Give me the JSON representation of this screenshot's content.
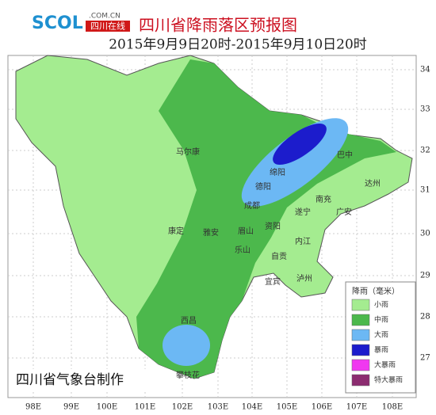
{
  "header": {
    "logo": "SCOL",
    "logo_domain": ".COM.CN",
    "logo_name": "四川在线",
    "title": "四川省降雨落区预报图",
    "subtitle": "2015年9月9日20时-2015年9月10日20时"
  },
  "axes": {
    "longitude_labels": [
      "98E",
      "99E",
      "100E",
      "101E",
      "102E",
      "103E",
      "104E",
      "105E",
      "106E",
      "107E",
      "108E"
    ],
    "latitude_labels": [
      "34",
      "33",
      "32",
      "31",
      "30",
      "29",
      "28",
      "27"
    ]
  },
  "cities": [
    "马尔康",
    "绵阳",
    "德阳",
    "成都",
    "巴中",
    "达州",
    "南充",
    "遂宁",
    "广安",
    "康定",
    "雅安",
    "眉山",
    "资阳",
    "乐山",
    "内江",
    "自贡",
    "泸州",
    "宜宾",
    "西昌",
    "攀枝花"
  ],
  "legend": {
    "title": "降雨（毫米）",
    "items": [
      {
        "label": "小雨",
        "color": "#a4ec90"
      },
      {
        "label": "中雨",
        "color": "#4cb84c"
      },
      {
        "label": "大雨",
        "color": "#6cb8f4"
      },
      {
        "label": "暴雨",
        "color": "#1c1ccc"
      },
      {
        "label": "大暴雨",
        "color": "#f038f0"
      },
      {
        "label": "特大暴雨",
        "color": "#8c2c70"
      }
    ]
  },
  "footer": "四川省气象台制作"
}
